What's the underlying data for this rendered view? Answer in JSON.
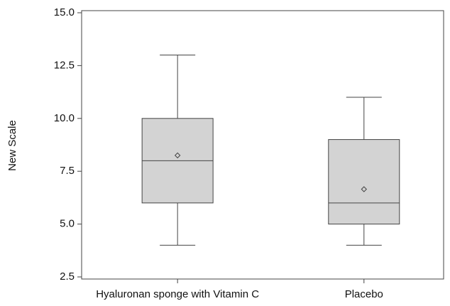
{
  "chart_data": {
    "type": "box",
    "y_label": "New Scale",
    "categories": [
      "Hyaluronan sponge with Vitamin C",
      "Placebo"
    ],
    "boxes": [
      {
        "min": 4,
        "q1": 6,
        "median": 8,
        "q3": 10,
        "max": 13,
        "mean": 8.25
      },
      {
        "min": 4,
        "q1": 5,
        "median": 6,
        "q3": 9,
        "max": 11,
        "mean": 6.65
      }
    ],
    "color": "#d3d3d3",
    "ylim": [
      2.4,
      15.1
    ],
    "yticks": [
      2.5,
      {
        "value": 5,
        "label": "5.0"
      },
      7.5,
      {
        "value": 10,
        "label": "10.0"
      },
      12.5,
      {
        "value": 15,
        "label": "15.0"
      }
    ],
    "grid": false
  }
}
